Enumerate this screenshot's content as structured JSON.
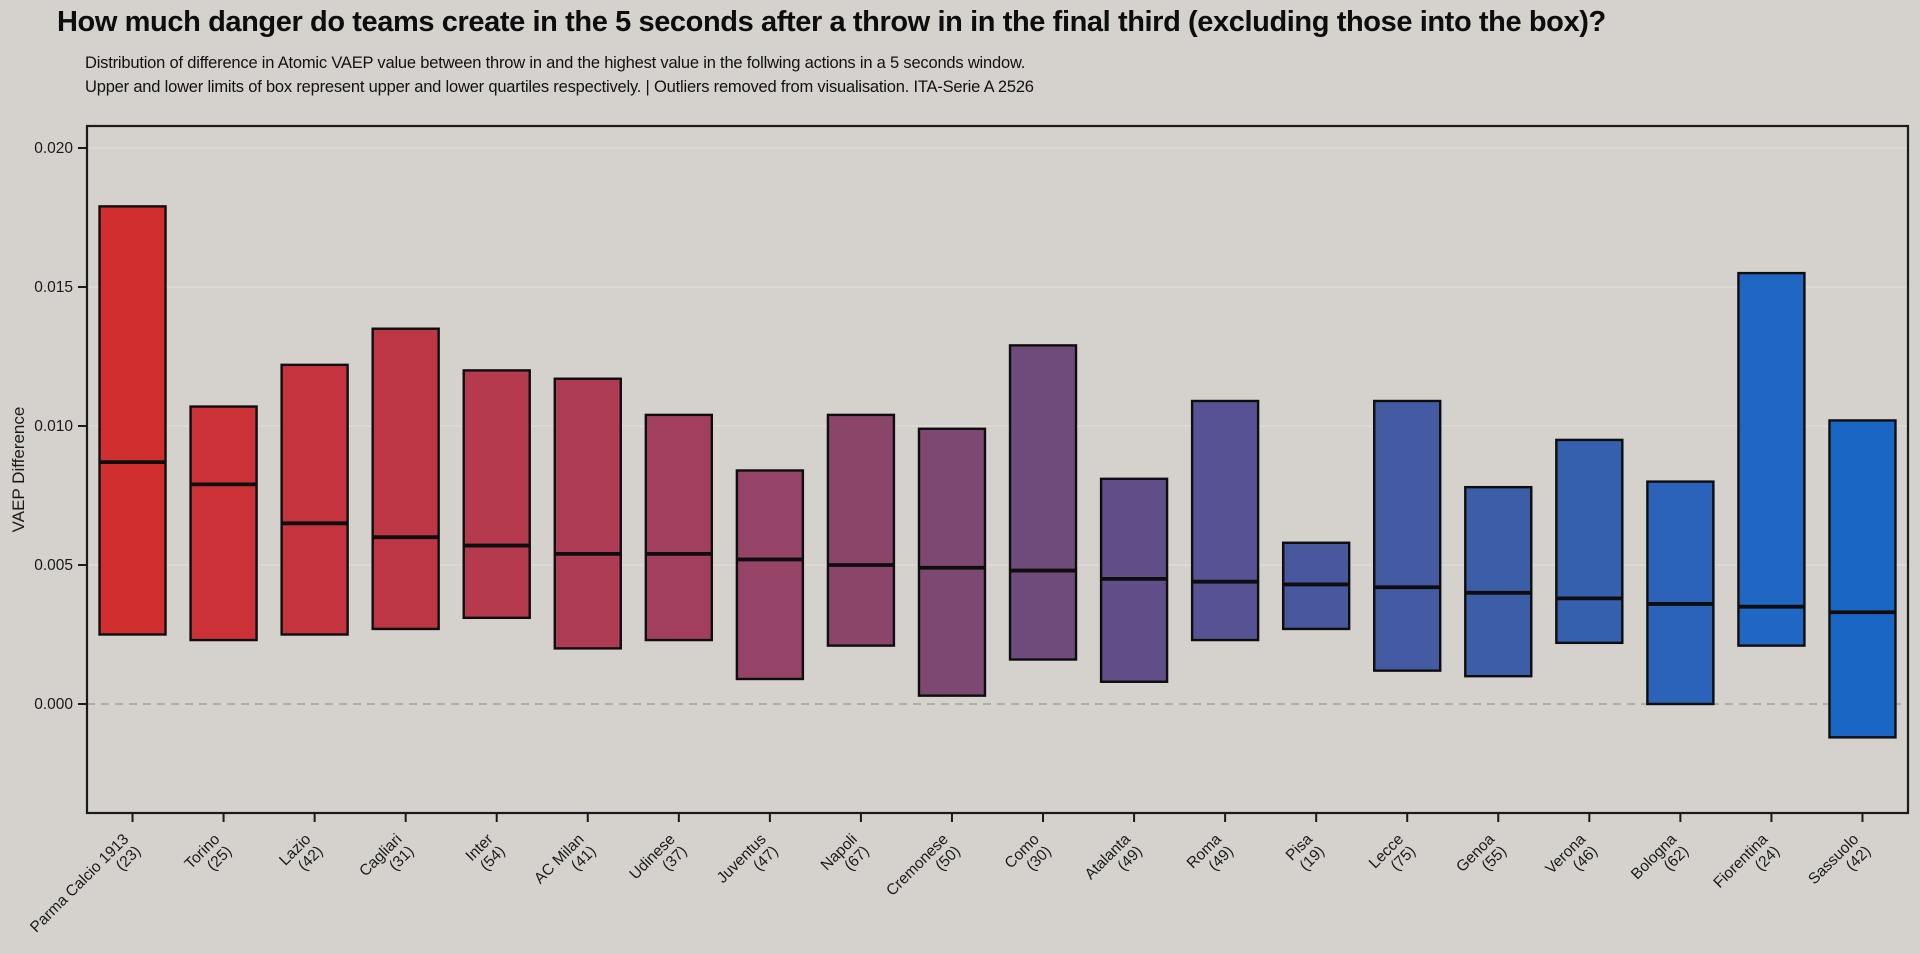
{
  "page": {
    "background": "#d5d1cd",
    "title": "How much danger do teams create in the 5 seconds after a throw in in the final third (excluding those into the box)?",
    "subtitle_line1": "Distribution of difference in Atomic VAEP value between throw in and the highest value in the follwing actions in a 5 seconds window.",
    "subtitle_line2": "Upper and lower limits of box represent upper and lower quartiles respectively. | Outliers removed from visualisation. ITA-Serie A 2526"
  },
  "chart_data": {
    "type": "box",
    "title": "How much danger do teams create in the 5 seconds after a throw in in the final third (excluding those into the box)?",
    "xlabel": "",
    "ylabel": "VAEP Difference",
    "ylim": [
      -0.0039,
      0.0208
    ],
    "grid": "horizontal",
    "legend_position": "none",
    "zero_line": {
      "value": 0.0,
      "style": "dashed",
      "color": "#a3a09d"
    },
    "gridline_color": "#dedad6",
    "frame_color": "#1a1a1a",
    "yticks": [
      {
        "label": "0.000",
        "value": 0.0
      },
      {
        "label": "0.005",
        "value": 0.005
      },
      {
        "label": "0.010",
        "value": 0.01
      },
      {
        "label": "0.015",
        "value": 0.015
      },
      {
        "label": "0.020",
        "value": 0.02
      }
    ],
    "boxes": [
      {
        "team": "Parma Calcio 1913",
        "count_label": "(23)",
        "upper_quartile": 0.0179,
        "median": 0.0087,
        "lower_quartile": 0.0025,
        "color": "#d12f2f"
      },
      {
        "team": "Torino",
        "count_label": "(25)",
        "upper_quartile": 0.0107,
        "median": 0.0079,
        "lower_quartile": 0.0023,
        "color": "#cb3136"
      },
      {
        "team": "Lazio",
        "count_label": "(42)",
        "upper_quartile": 0.0122,
        "median": 0.0065,
        "lower_quartile": 0.0025,
        "color": "#c4333e"
      },
      {
        "team": "Cagliari",
        "count_label": "(31)",
        "upper_quartile": 0.0135,
        "median": 0.006,
        "lower_quartile": 0.0027,
        "color": "#bd3646"
      },
      {
        "team": "Inter",
        "count_label": "(54)",
        "upper_quartile": 0.012,
        "median": 0.0057,
        "lower_quartile": 0.0031,
        "color": "#b53a4d"
      },
      {
        "team": "AC Milan",
        "count_label": "(41)",
        "upper_quartile": 0.0117,
        "median": 0.0054,
        "lower_quartile": 0.002,
        "color": "#ad3c54"
      },
      {
        "team": "Udinese",
        "count_label": "(37)",
        "upper_quartile": 0.0104,
        "median": 0.0054,
        "lower_quartile": 0.0023,
        "color": "#a33f5e"
      },
      {
        "team": "Juventus",
        "count_label": "(47)",
        "upper_quartile": 0.0084,
        "median": 0.0052,
        "lower_quartile": 0.0009,
        "color": "#954468"
      },
      {
        "team": "Napoli",
        "count_label": "(67)",
        "upper_quartile": 0.0104,
        "median": 0.005,
        "lower_quartile": 0.0021,
        "color": "#8a4568"
      },
      {
        "team": "Cremonese",
        "count_label": "(50)",
        "upper_quartile": 0.0099,
        "median": 0.0049,
        "lower_quartile": 0.0003,
        "color": "#7d4972"
      },
      {
        "team": "Como",
        "count_label": "(30)",
        "upper_quartile": 0.0129,
        "median": 0.0048,
        "lower_quartile": 0.0016,
        "color": "#6f4b7c"
      },
      {
        "team": "Atalanta",
        "count_label": "(49)",
        "upper_quartile": 0.0081,
        "median": 0.0045,
        "lower_quartile": 0.0008,
        "color": "#5f4e88"
      },
      {
        "team": "Roma",
        "count_label": "(49)",
        "upper_quartile": 0.0109,
        "median": 0.0044,
        "lower_quartile": 0.0023,
        "color": "#565293"
      },
      {
        "team": "Pisa",
        "count_label": "(19)",
        "upper_quartile": 0.0058,
        "median": 0.0043,
        "lower_quartile": 0.0027,
        "color": "#49579e"
      },
      {
        "team": "Lecce",
        "count_label": "(75)",
        "upper_quartile": 0.0109,
        "median": 0.0042,
        "lower_quartile": 0.0012,
        "color": "#445ba4"
      },
      {
        "team": "Genoa",
        "count_label": "(55)",
        "upper_quartile": 0.0078,
        "median": 0.004,
        "lower_quartile": 0.001,
        "color": "#3c5da8"
      },
      {
        "team": "Verona",
        "count_label": "(46)",
        "upper_quartile": 0.0095,
        "median": 0.0038,
        "lower_quartile": 0.0022,
        "color": "#3560ae"
      },
      {
        "team": "Bologna",
        "count_label": "(62)",
        "upper_quartile": 0.008,
        "median": 0.0036,
        "lower_quartile": 0.0,
        "color": "#2b63ba"
      },
      {
        "team": "Fiorentina",
        "count_label": "(24)",
        "upper_quartile": 0.0155,
        "median": 0.0035,
        "lower_quartile": 0.0021,
        "color": "#2067c4"
      },
      {
        "team": "Sassuolo",
        "count_label": "(42)",
        "upper_quartile": 0.0102,
        "median": 0.0033,
        "lower_quartile": -0.0012,
        "color": "#1a66c5"
      }
    ]
  }
}
